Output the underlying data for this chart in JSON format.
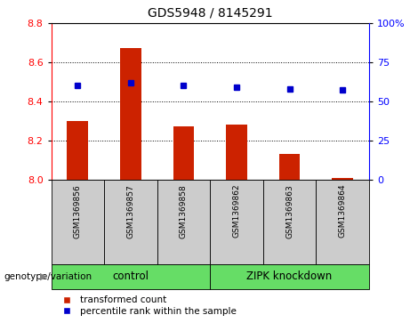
{
  "title": "GDS5948 / 8145291",
  "samples": [
    "GSM1369856",
    "GSM1369857",
    "GSM1369858",
    "GSM1369862",
    "GSM1369863",
    "GSM1369864"
  ],
  "transformed_count": [
    8.3,
    8.67,
    8.27,
    8.28,
    8.13,
    8.01
  ],
  "percentile_rank": [
    60,
    62,
    60,
    59,
    58,
    57
  ],
  "ylim_left": [
    8.0,
    8.8
  ],
  "ylim_right": [
    0,
    100
  ],
  "yticks_left": [
    8.0,
    8.2,
    8.4,
    8.6,
    8.8
  ],
  "yticks_right": [
    0,
    25,
    50,
    75,
    100
  ],
  "bar_color": "#cc2200",
  "dot_color": "#0000cc",
  "bg_color_samples": "#cccccc",
  "bg_color_green": "#66dd66",
  "legend_label_bar": "transformed count",
  "legend_label_dot": "percentile rank within the sample",
  "genotype_label": "genotype/variation",
  "control_label": "control",
  "zipk_label": "ZIPK knockdown",
  "base_value": 8.0,
  "bar_width": 0.4
}
